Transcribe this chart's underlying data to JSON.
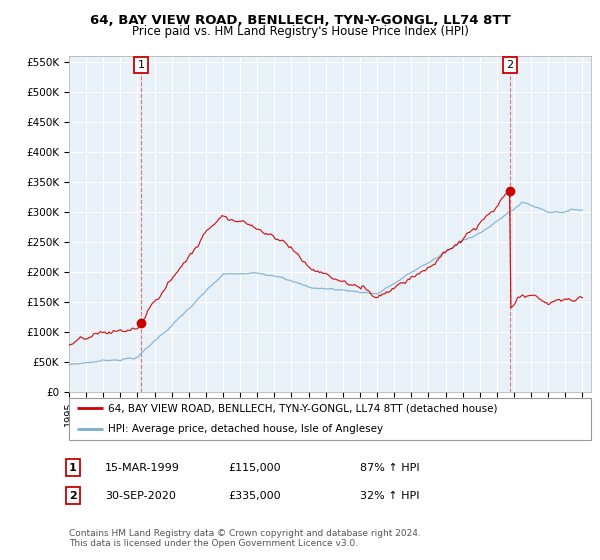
{
  "title": "64, BAY VIEW ROAD, BENLLECH, TYN-Y-GONGL, LL74 8TT",
  "subtitle": "Price paid vs. HM Land Registry's House Price Index (HPI)",
  "ylabel_ticks": [
    "£0",
    "£50K",
    "£100K",
    "£150K",
    "£200K",
    "£250K",
    "£300K",
    "£350K",
    "£400K",
    "£450K",
    "£500K",
    "£550K"
  ],
  "ytick_vals": [
    0,
    50000,
    100000,
    150000,
    200000,
    250000,
    300000,
    350000,
    400000,
    450000,
    500000,
    550000
  ],
  "ylim": [
    0,
    560000
  ],
  "xlim_start": 1995.0,
  "xlim_end": 2025.5,
  "red_color": "#cc0000",
  "blue_color": "#7aadcf",
  "bg_color": "#e8f0f8",
  "marker1_date": "15-MAR-1999",
  "marker1_price": "£115,000",
  "marker1_hpi": "87% ↑ HPI",
  "marker1_x": 1999.2,
  "marker1_y": 115000,
  "marker2_date": "30-SEP-2020",
  "marker2_price": "£335,000",
  "marker2_hpi": "32% ↑ HPI",
  "marker2_x": 2020.75,
  "marker2_y": 335000,
  "legend_line1": "64, BAY VIEW ROAD, BENLLECH, TYN-Y-GONGL, LL74 8TT (detached house)",
  "legend_line2": "HPI: Average price, detached house, Isle of Anglesey",
  "footnote1": "Contains HM Land Registry data © Crown copyright and database right 2024.",
  "footnote2": "This data is licensed under the Open Government Licence v3.0.",
  "xtick_years": [
    1995,
    1996,
    1997,
    1998,
    1999,
    2000,
    2001,
    2002,
    2003,
    2004,
    2005,
    2006,
    2007,
    2008,
    2009,
    2010,
    2011,
    2012,
    2013,
    2014,
    2015,
    2016,
    2017,
    2018,
    2019,
    2020,
    2021,
    2022,
    2023,
    2024,
    2025
  ]
}
